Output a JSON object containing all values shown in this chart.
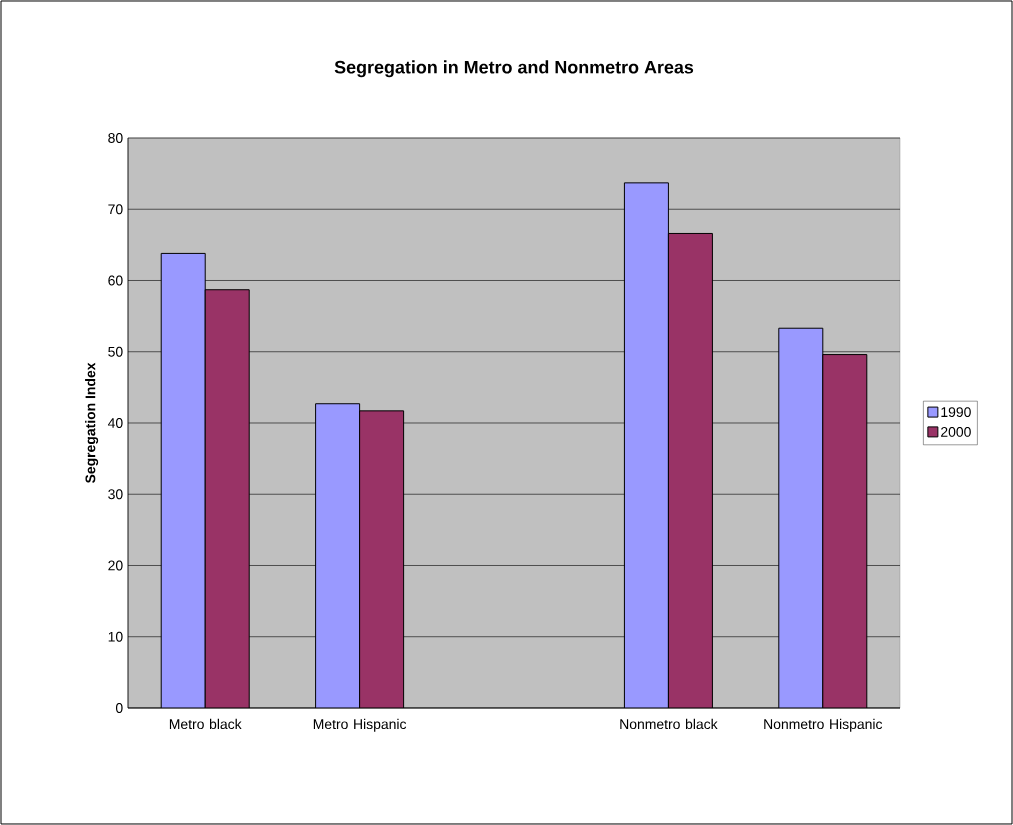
{
  "chart_data": {
    "type": "bar",
    "title": "Segregation in Metro and Nonmetro Areas",
    "ylabel": "Segregation Index",
    "categories": [
      "Metro black",
      "Metro Hispanic",
      null,
      "Nonmetro black",
      "Nonmetro Hispanic"
    ],
    "series": [
      {
        "name": "1990",
        "color": "#9999ff",
        "values": [
          63.8,
          42.7,
          null,
          73.7,
          53.3
        ]
      },
      {
        "name": "2000",
        "color": "#993366",
        "values": [
          58.7,
          41.7,
          null,
          66.6,
          49.6
        ]
      }
    ],
    "ylim": [
      0,
      80
    ],
    "yticks": [
      0,
      10,
      20,
      30,
      40,
      50,
      60,
      70,
      80
    ],
    "grid": "y",
    "legend": "right"
  }
}
